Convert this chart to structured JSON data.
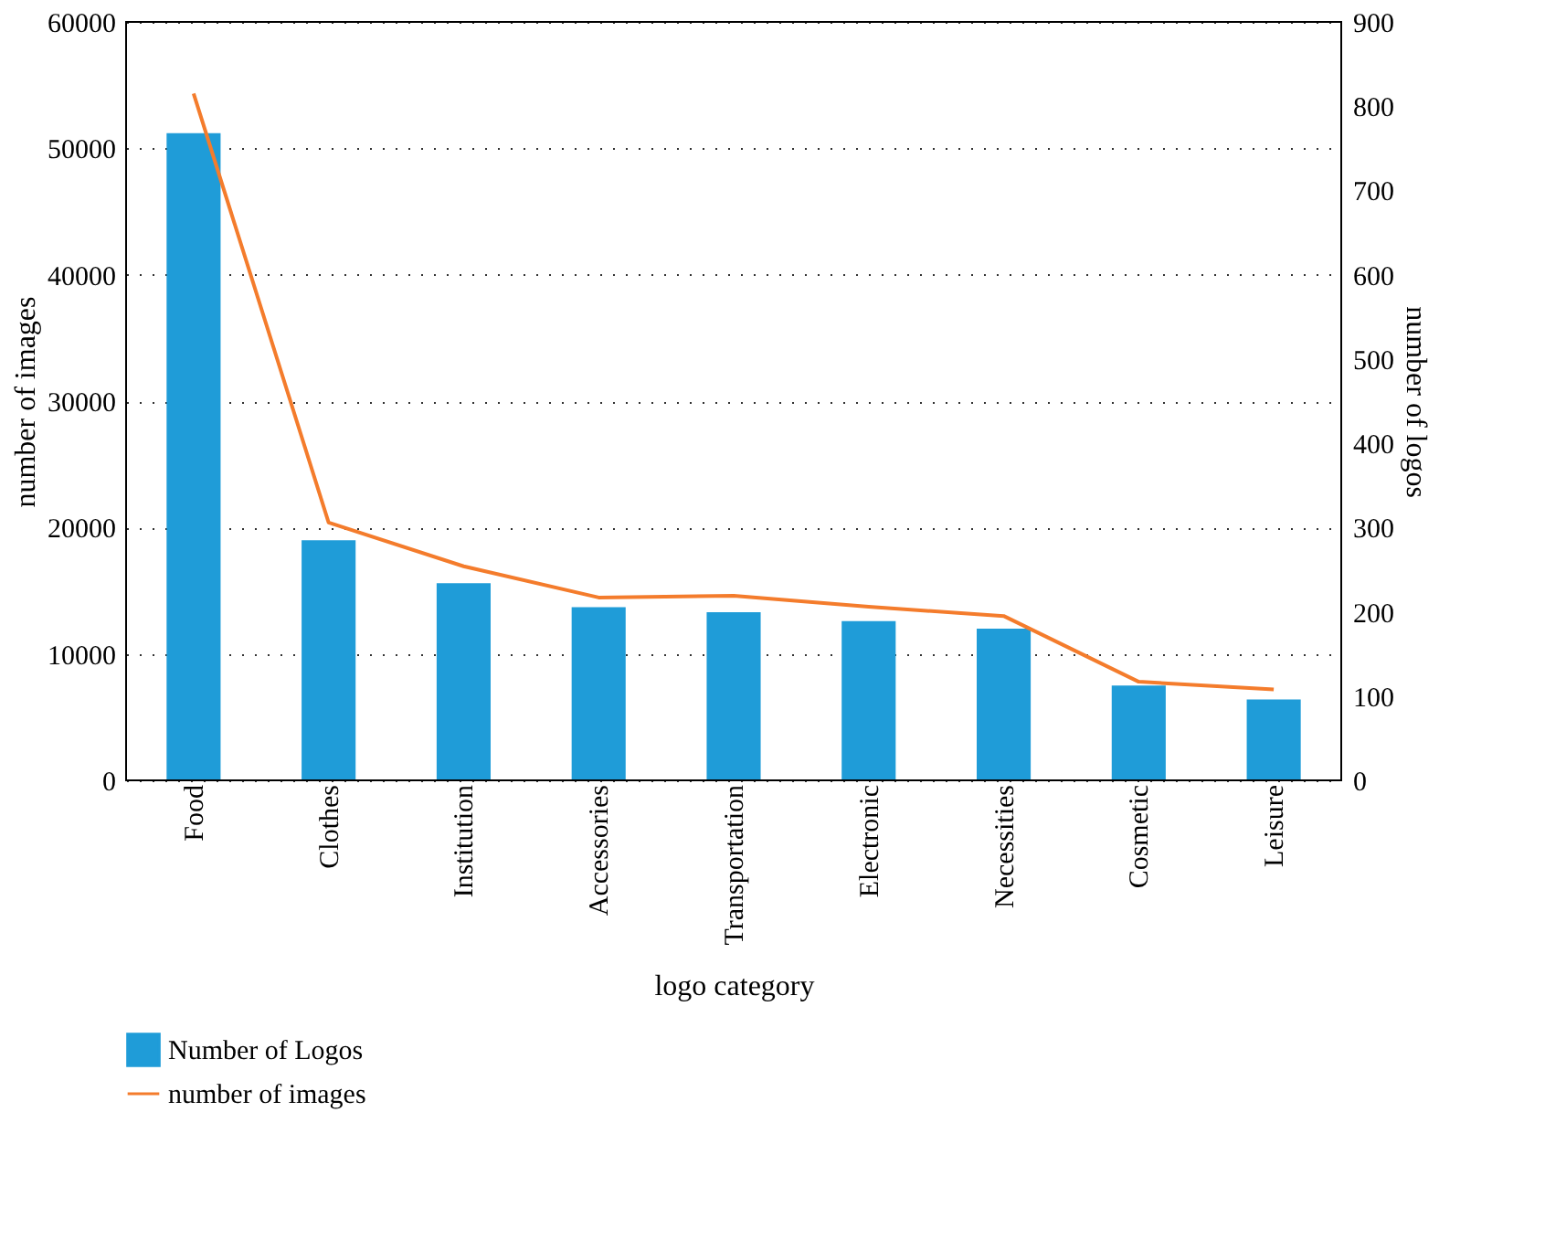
{
  "chart_data": {
    "type": "bar",
    "xlabel": "logo category",
    "ylabel": "number of images",
    "y2label": "number of logos",
    "categories": [
      "Food",
      "Clothes",
      "Institution",
      "Accessories",
      "Transportation",
      "Electronic",
      "Necessities",
      "Cosmetic",
      "Leisure"
    ],
    "series": [
      {
        "name": "Number of Logos",
        "color": "#1f9cd8",
        "values": [
          51200,
          19000,
          15600,
          13700,
          13300,
          12600,
          12000,
          7500,
          6400
        ]
      },
      {
        "name": "number of images",
        "color": "#f47c2c",
        "type": "line",
        "axis": "y2",
        "values": [
          815,
          306,
          254,
          217,
          219,
          206,
          195,
          117,
          108
        ]
      }
    ],
    "ylim": [
      0,
      60000
    ],
    "yticks": [
      0,
      10000,
      20000,
      30000,
      40000,
      50000,
      60000
    ],
    "y2lim": [
      0,
      900
    ],
    "y2ticks": [
      0,
      100,
      200,
      300,
      400,
      500,
      600,
      700,
      800,
      900
    ],
    "grid": "y",
    "legend": "bottom"
  }
}
